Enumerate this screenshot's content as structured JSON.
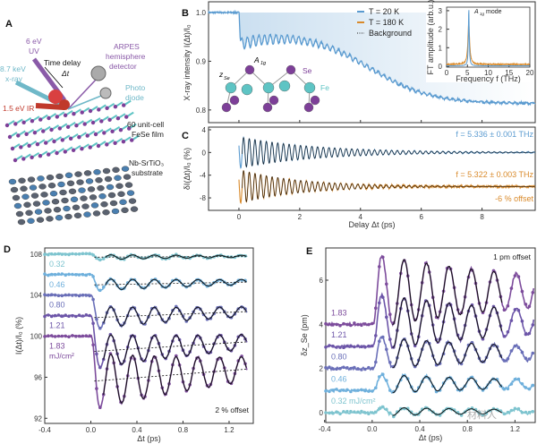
{
  "panel_labels": {
    "a": "A",
    "b": "B",
    "c": "C",
    "d": "D",
    "e": "E"
  },
  "schematic": {
    "uv_line1": "6 eV",
    "uv_line2": "UV",
    "xray_line1": "8.7 keV",
    "xray_line2": "x-ray",
    "delay_line1": "Time delay",
    "delay_line2": "Δt",
    "arpes_line1": "ARPES",
    "arpes_line2": "hemisphere",
    "arpes_line3": "detector",
    "diode_line1": "Photo",
    "diode_line2": "diode",
    "ir": "1.5 eV IR",
    "film_line1": "60 unit-cell",
    "film_line2": "FeSe film",
    "substrate_line1": "Nb-SrTiO₃",
    "substrate_line2": "substrate"
  },
  "colors": {
    "t20": "#5b9bd0",
    "t180": "#d98a2b",
    "fit": "#111111",
    "uv": "#8a5aa8",
    "xray": "#6fb8c8",
    "ir": "#c0392b",
    "se": "#7d3f98",
    "fe": "#5ec4c4"
  },
  "chart_data": [
    {
      "id": "B",
      "type": "line",
      "ylabel": "X-ray intensity I(Δt)/I₀",
      "xlabel": "",
      "xlim": [
        -1,
        9.75
      ],
      "ylim": [
        0.774,
        1.022
      ],
      "yticks": [
        0.8,
        0.9,
        1.0
      ],
      "ytick_labels": [
        "0.8",
        "0.9",
        "1.0"
      ],
      "xticks": [
        0,
        2,
        4,
        6,
        8
      ],
      "legend": [
        "T = 20 K",
        "T = 180 K",
        "Background"
      ],
      "legend_position": "top-center",
      "series": [
        {
          "name": "T = 20 K",
          "baseline_before": 1.0,
          "plateau_after": 0.958,
          "final": 0.81,
          "drop_center_ps": 4.3,
          "osc_amplitude": 0.012,
          "freq_thz": 5.336
        }
      ],
      "structure_labels": {
        "a1g": "A",
        "a1g_sub": "1g",
        "se": "Se",
        "fe": "Fe",
        "zse": "z",
        "zse_sub": "Se"
      }
    },
    {
      "id": "B-inset",
      "type": "line",
      "xlabel": "Frequency f (THz)",
      "ylabel": "FT amplitude (arb.u.)",
      "xlim": [
        0,
        20
      ],
      "ylim": [
        -0.05,
        3.19
      ],
      "xticks": [
        0,
        5,
        10,
        15,
        20
      ],
      "xtick_labels": [
        "0",
        "5",
        "10",
        "15",
        "20"
      ],
      "yticks": [
        0,
        1,
        2,
        3
      ],
      "ytick_labels": [
        "0",
        "1",
        "2",
        "3"
      ],
      "annotation": "A",
      "annotation_sub": "1g",
      "annotation_suffix": " mode",
      "series": [
        {
          "name": "T = 20 K",
          "peak_thz": 5.336,
          "peak_amp": 3.05
        },
        {
          "name": "T = 180 K",
          "peak_thz": 5.322,
          "peak_amp": 2.2
        }
      ]
    },
    {
      "id": "C",
      "type": "line",
      "ylabel": "δI(Δt)/I₀ (%)",
      "xlabel": "Delay Δt (ps)",
      "xlim": [
        -1,
        9.75
      ],
      "ylim": [
        -10.2,
        4.47
      ],
      "yticks": [
        -8,
        -4,
        0,
        4
      ],
      "ytick_labels": [
        "-8",
        "-4",
        "0",
        "4"
      ],
      "xticks": [
        0,
        2,
        4,
        6,
        8
      ],
      "xtick_labels": [
        "0",
        "2",
        "4",
        "6",
        "8"
      ],
      "annotations": [
        "f = 5.336 ± 0.001 THz",
        "f = 5.322 ± 0.003 THz",
        "-6 % offset"
      ],
      "series": [
        {
          "name": "T = 20 K",
          "offset": 0,
          "amplitude": 2.8,
          "decay_ps": 2.5,
          "freq_thz": 5.336
        },
        {
          "name": "T = 180 K",
          "offset": -6,
          "amplitude": 3.0,
          "decay_ps": 2.0,
          "freq_thz": 5.322
        }
      ]
    },
    {
      "id": "D",
      "type": "scatter",
      "ylabel": "I(Δt)/I₀ (%)",
      "xlabel": "Δt (ps)",
      "xlim": [
        -0.4,
        1.41
      ],
      "ylim": [
        91.5,
        108.6
      ],
      "yticks": [
        92,
        96,
        100,
        104,
        108
      ],
      "ytick_labels": [
        "92",
        "96",
        "100",
        "104",
        "108"
      ],
      "xticks": [
        -0.4,
        0,
        0.4,
        0.8,
        1.2
      ],
      "xtick_labels": [
        "-0.4",
        "0.0",
        "0.4",
        "0.8",
        "1.2"
      ],
      "annotation": "2 % offset",
      "unit_label": "mJ/cm²",
      "series": [
        {
          "name": "0.32",
          "baseline": 108,
          "drop": 0.3,
          "amplitude": 0.25,
          "color": "#7ec4cf"
        },
        {
          "name": "0.46",
          "baseline": 106,
          "drop": 1.0,
          "amplitude": 0.6,
          "color": "#6fb0dc"
        },
        {
          "name": "0.80",
          "baseline": 104,
          "drop": 2.2,
          "amplitude": 1.1,
          "color": "#6a6fb8"
        },
        {
          "name": "1.21",
          "baseline": 102,
          "drop": 3.5,
          "amplitude": 1.7,
          "color": "#6c55a8"
        },
        {
          "name": "1.83",
          "baseline": 100,
          "drop": 4.4,
          "amplitude": 2.8,
          "color": "#7d4c9c"
        }
      ],
      "freq_thz": 5.3
    },
    {
      "id": "E",
      "type": "scatter",
      "ylabel": "δz_Se (pm)",
      "xlabel": "Δt (ps)",
      "xlim": [
        -0.39,
        1.37
      ],
      "ylim": [
        -0.45,
        7.46
      ],
      "yticks": [
        0,
        2,
        4,
        6
      ],
      "ytick_labels": [
        "0",
        "2",
        "4",
        "6"
      ],
      "xticks": [
        -0.4,
        0,
        0.4,
        0.8,
        1.2
      ],
      "xtick_labels": [
        "-0.4",
        "0.0",
        "0.4",
        "0.8",
        "1.2"
      ],
      "annotation": "1 pm offset",
      "unit_label": "mJ/cm²",
      "series": [
        {
          "name": "0.32",
          "baseline": 0,
          "shift": 0.05,
          "amplitude": 0.2,
          "color": "#7ec4cf"
        },
        {
          "name": "0.46",
          "baseline": 1,
          "shift": 0.3,
          "amplitude": 0.45,
          "color": "#6fb0dc"
        },
        {
          "name": "0.80",
          "baseline": 2,
          "shift": 0.7,
          "amplitude": 0.75,
          "color": "#6a6fb8"
        },
        {
          "name": "1.21",
          "baseline": 3,
          "shift": 1.1,
          "amplitude": 1.3,
          "color": "#6c55a8"
        },
        {
          "name": "1.83",
          "baseline": 4,
          "shift": 1.5,
          "amplitude": 1.7,
          "color": "#7d4c9c"
        }
      ],
      "freq_thz": 5.3
    }
  ],
  "watermark": "材料人"
}
